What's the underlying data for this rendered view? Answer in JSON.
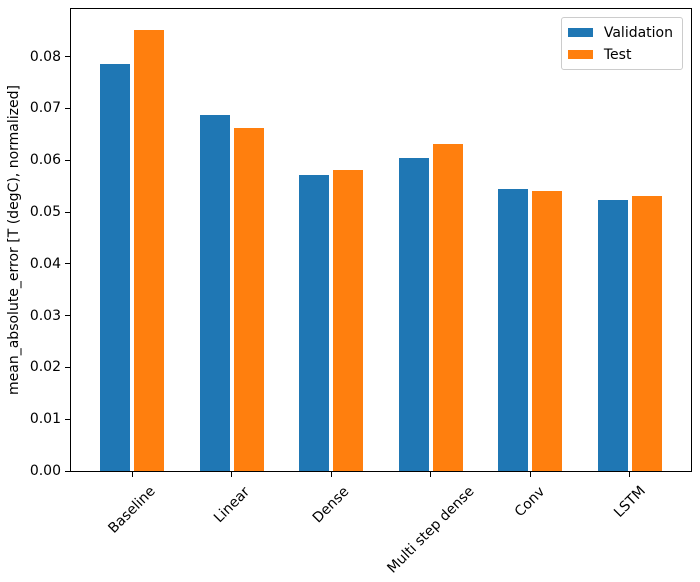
{
  "chart_data": {
    "type": "bar",
    "title": "",
    "xlabel": "",
    "ylabel": "mean_absolute_error [T (degC), normalized]",
    "categories": [
      "Baseline",
      "Linear",
      "Dense",
      "Multi step dense",
      "Conv",
      "LSTM"
    ],
    "series": [
      {
        "name": "Validation",
        "color": "#1f77b4",
        "values": [
          0.0785,
          0.0687,
          0.0571,
          0.0605,
          0.0544,
          0.0523
        ]
      },
      {
        "name": "Test",
        "color": "#ff7f0e",
        "values": [
          0.0851,
          0.0662,
          0.0582,
          0.0632,
          0.0541,
          0.0531
        ]
      }
    ],
    "ylim": [
      0,
      0.0892
    ],
    "yticks": [
      0.0,
      0.01,
      0.02,
      0.03,
      0.04,
      0.05,
      0.06,
      0.07,
      0.08
    ],
    "ytick_labels": [
      "0.00",
      "0.01",
      "0.02",
      "0.03",
      "0.04",
      "0.05",
      "0.06",
      "0.07",
      "0.08"
    ],
    "xtick_rotation_deg": 45,
    "grid": false,
    "legend": {
      "position": "upper right",
      "entries": [
        "Validation",
        "Test"
      ]
    }
  }
}
